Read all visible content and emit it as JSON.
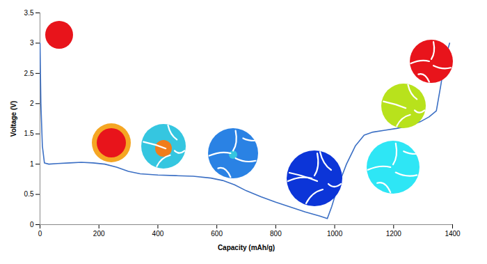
{
  "chart_data": {
    "type": "line",
    "xlabel": "Capacity (mAh/g)",
    "ylabel": "Voltage (V)",
    "color": "#3b6fc4",
    "x": [
      0,
      3,
      8,
      15,
      30,
      60,
      100,
      140,
      180,
      220,
      260,
      300,
      340,
      400,
      460,
      520,
      580,
      620,
      660,
      700,
      750,
      800,
      850,
      900,
      950,
      975,
      990,
      1010,
      1040,
      1070,
      1100,
      1130,
      1170,
      1210,
      1250,
      1290,
      1320,
      1345,
      1360,
      1375,
      1390
    ],
    "values": [
      3.0,
      2.0,
      1.3,
      1.02,
      1.0,
      1.01,
      1.02,
      1.03,
      1.02,
      1.0,
      0.95,
      0.88,
      0.84,
      0.82,
      0.81,
      0.8,
      0.77,
      0.73,
      0.66,
      0.56,
      0.46,
      0.37,
      0.29,
      0.21,
      0.14,
      0.1,
      0.3,
      0.62,
      1.0,
      1.3,
      1.48,
      1.53,
      1.56,
      1.59,
      1.63,
      1.7,
      1.78,
      1.88,
      2.3,
      2.75,
      3.0
    ],
    "xlim": [
      0,
      1400
    ],
    "ylim": [
      0,
      3.5
    ],
    "xticks": [
      0,
      200,
      400,
      600,
      800,
      1000,
      1200,
      1400
    ],
    "yticks": [
      0,
      0.5,
      1,
      1.5,
      2,
      2.5,
      3,
      3.5
    ],
    "grid": false
  }
}
